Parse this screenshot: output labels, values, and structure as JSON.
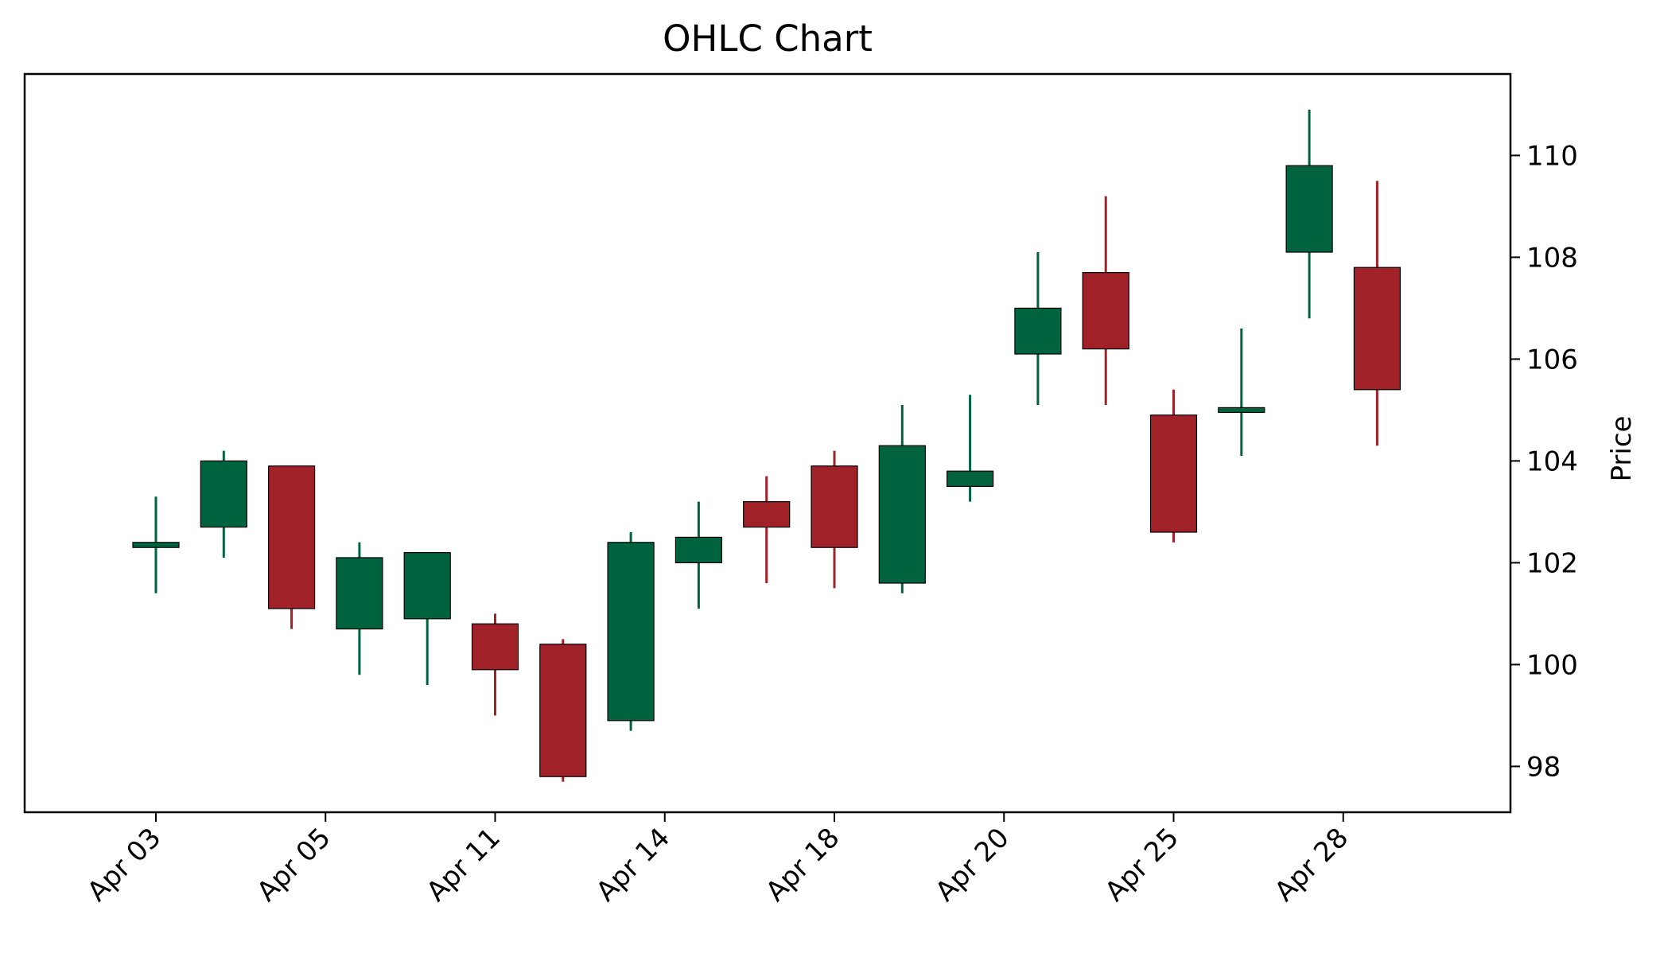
{
  "chart_data": {
    "type": "ohlc",
    "title": "OHLC Chart",
    "xlabel": "",
    "ylabel": "Price",
    "y_axis_side": "right",
    "ylim": [
      97.1,
      111.6
    ],
    "yticks": [
      98,
      100,
      102,
      104,
      106,
      108,
      110
    ],
    "xticks": [
      {
        "index": 0,
        "label": "Apr 03"
      },
      {
        "index": 2.5,
        "label": "Apr 05"
      },
      {
        "index": 5,
        "label": "Apr 11"
      },
      {
        "index": 7.5,
        "label": "Apr 14"
      },
      {
        "index": 10,
        "label": "Apr 18"
      },
      {
        "index": 12.5,
        "label": "Apr 20"
      },
      {
        "index": 15,
        "label": "Apr 25"
      },
      {
        "index": 17.5,
        "label": "Apr 28"
      }
    ],
    "colors": {
      "up": "#006340",
      "down": "#a02128"
    },
    "candles": [
      {
        "open": 102.3,
        "high": 103.3,
        "low": 101.4,
        "close": 102.4
      },
      {
        "open": 102.7,
        "high": 104.2,
        "low": 102.1,
        "close": 104.0
      },
      {
        "open": 103.9,
        "high": 103.9,
        "low": 100.7,
        "close": 101.1
      },
      {
        "open": 100.7,
        "high": 102.4,
        "low": 99.8,
        "close": 102.1
      },
      {
        "open": 100.9,
        "high": 102.2,
        "low": 99.6,
        "close": 102.2
      },
      {
        "open": 100.8,
        "high": 101.0,
        "low": 99.0,
        "close": 99.9
      },
      {
        "open": 100.4,
        "high": 100.5,
        "low": 97.7,
        "close": 97.8
      },
      {
        "open": 98.9,
        "high": 102.6,
        "low": 98.7,
        "close": 102.4
      },
      {
        "open": 102.0,
        "high": 103.2,
        "low": 101.1,
        "close": 102.5
      },
      {
        "open": 103.2,
        "high": 103.7,
        "low": 101.6,
        "close": 102.7
      },
      {
        "open": 103.9,
        "high": 104.2,
        "low": 101.5,
        "close": 102.3
      },
      {
        "open": 101.6,
        "high": 105.1,
        "low": 101.4,
        "close": 104.3
      },
      {
        "open": 103.5,
        "high": 105.3,
        "low": 103.2,
        "close": 103.8
      },
      {
        "open": 106.1,
        "high": 108.1,
        "low": 105.1,
        "close": 107.0
      },
      {
        "open": 107.7,
        "high": 109.2,
        "low": 105.1,
        "close": 106.2
      },
      {
        "open": 104.9,
        "high": 105.4,
        "low": 102.4,
        "close": 102.6
      },
      {
        "open": 105.0,
        "high": 106.6,
        "low": 104.1,
        "close": 105.0
      },
      {
        "open": 108.1,
        "high": 110.9,
        "low": 106.8,
        "close": 109.8
      },
      {
        "open": 107.8,
        "high": 109.5,
        "low": 104.3,
        "close": 105.4
      }
    ]
  }
}
